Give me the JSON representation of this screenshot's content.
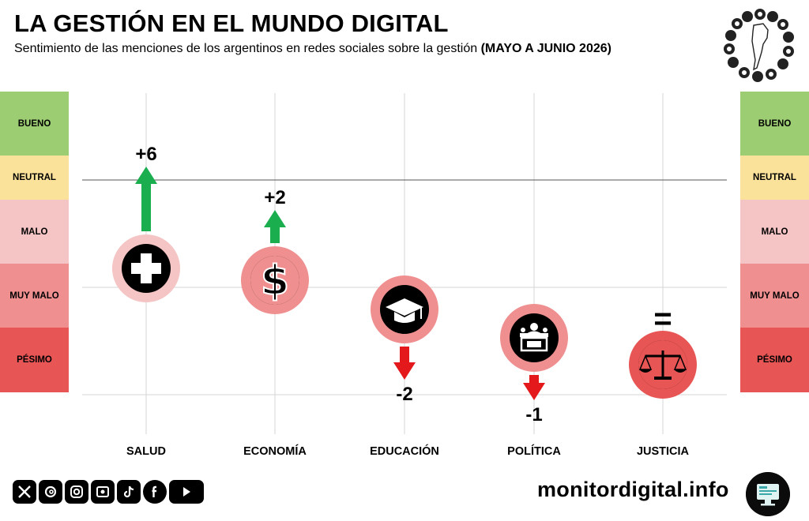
{
  "header": {
    "title": "LA GESTIÓN EN EL MUNDO DIGITAL",
    "subtitle_text": "Sentimiento de las menciones de los argentinos en redes sociales sobre la gestión",
    "subtitle_period": "(MAYO A JUNIO 2026)"
  },
  "scale_bands": [
    {
      "label": "BUENO",
      "color": "#9dcd73"
    },
    {
      "label": "NEUTRAL",
      "color": "#fbe29b"
    },
    {
      "label": "MALO",
      "color": "#f5c4c4"
    },
    {
      "label": "MUY MALO",
      "color": "#ef8f8f"
    },
    {
      "label": "PÉSIMO",
      "color": "#e85555"
    }
  ],
  "chart_data": {
    "type": "scatter",
    "categories": [
      "SALUD",
      "ECONOMÍA",
      "EDUCACIÓN",
      "POLÍTICA",
      "JUSTICIA"
    ],
    "y_levels": [
      "BUENO",
      "NEUTRAL",
      "MALO",
      "MUY MALO",
      "PÉSIMO"
    ],
    "points": [
      {
        "category": "SALUD",
        "level": "MALO",
        "change": 6,
        "label": "+6",
        "direction": "up",
        "icon": "medical-cross-icon"
      },
      {
        "category": "ECONOMÍA",
        "level": "MUY MALO",
        "change": 2,
        "label": "+2",
        "direction": "up",
        "icon": "dollar-sign-icon"
      },
      {
        "category": "EDUCACIÓN",
        "level": "MUY MALO",
        "change": -2,
        "label": "-2",
        "direction": "down",
        "icon": "graduation-cap-icon"
      },
      {
        "category": "POLÍTICA",
        "level": "MUY MALO",
        "change": -1,
        "label": "-1",
        "direction": "down",
        "icon": "congress-podium-icon"
      },
      {
        "category": "JUSTICIA",
        "level": "PÉSIMO",
        "change": 0,
        "label": "=",
        "direction": "equal",
        "icon": "balance-scale-icon"
      }
    ],
    "colors": {
      "up": "#1aae4f",
      "down": "#e3191b",
      "malo": "#f5c4c4",
      "muy_malo": "#ef8f8f",
      "pesimo": "#e85555"
    }
  },
  "footer": {
    "social_icons": [
      "x-icon",
      "threads-icon",
      "instagram-icon",
      "tv-icon",
      "tiktok-icon",
      "facebook-icon",
      "youtube-icon"
    ],
    "site": "monitordigital.info"
  }
}
